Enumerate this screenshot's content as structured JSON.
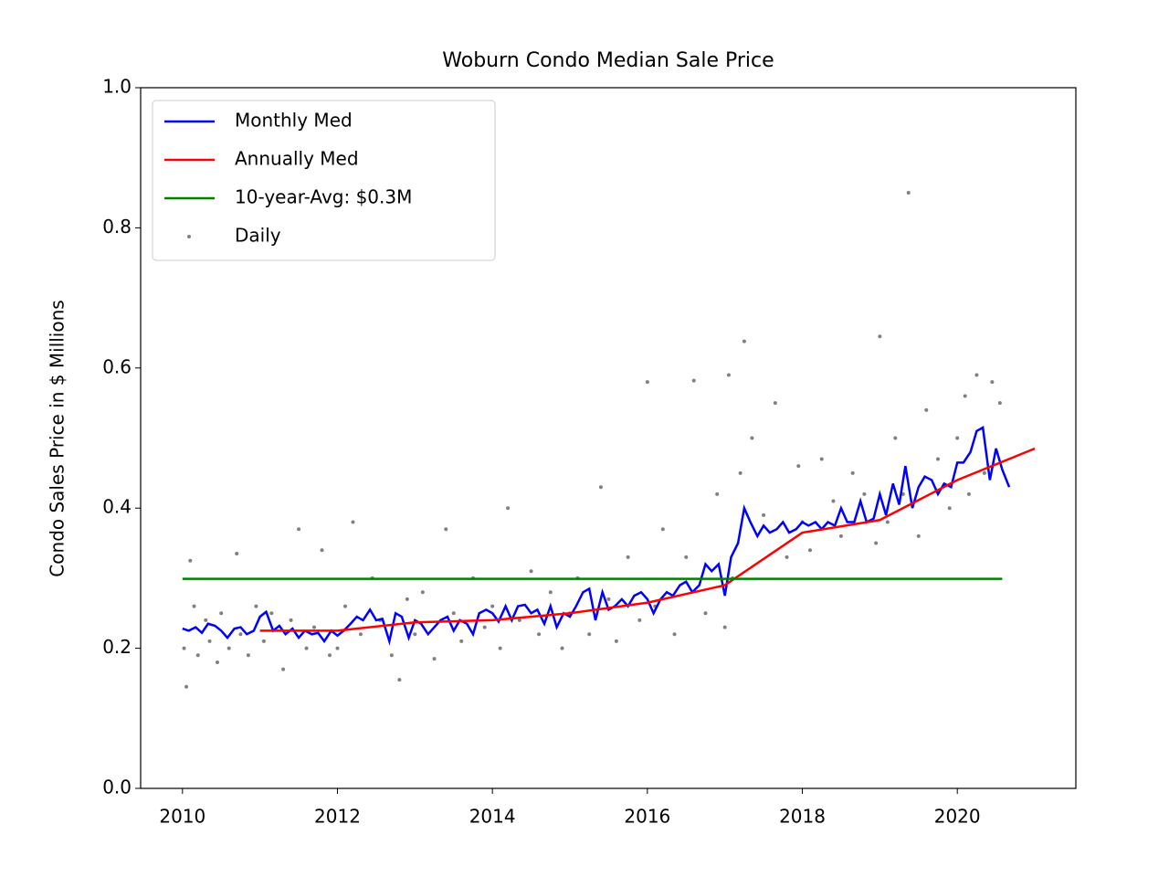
{
  "chart_data": {
    "type": "line",
    "title": "Woburn Condo Median Sale Price",
    "y_label": "Condo Sales Price in $ Millions",
    "xlim": [
      2009.46,
      2021.53
    ],
    "ylim": [
      0,
      1
    ],
    "xticks": [
      2010,
      2012,
      2014,
      2016,
      2018,
      2020
    ],
    "yticks": [
      {
        "value": 0,
        "label": "0.0"
      },
      0.2,
      0.4,
      0.6,
      0.8,
      {
        "value": 1,
        "label": "1.0"
      }
    ],
    "legend": "upper left",
    "series": [
      {
        "name": "Monthly Med",
        "color": "#0000ff",
        "kind": "line",
        "x": [
          2010.0,
          2010.08,
          2010.17,
          2010.25,
          2010.33,
          2010.42,
          2010.5,
          2010.58,
          2010.67,
          2010.75,
          2010.83,
          2010.92,
          2011.0,
          2011.08,
          2011.17,
          2011.25,
          2011.33,
          2011.42,
          2011.5,
          2011.58,
          2011.67,
          2011.75,
          2011.83,
          2011.92,
          2012.0,
          2012.08,
          2012.17,
          2012.25,
          2012.33,
          2012.42,
          2012.5,
          2012.58,
          2012.67,
          2012.75,
          2012.83,
          2012.92,
          2013.0,
          2013.08,
          2013.17,
          2013.25,
          2013.33,
          2013.42,
          2013.5,
          2013.58,
          2013.67,
          2013.75,
          2013.83,
          2013.92,
          2014.0,
          2014.08,
          2014.17,
          2014.25,
          2014.33,
          2014.42,
          2014.5,
          2014.58,
          2014.67,
          2014.75,
          2014.83,
          2014.92,
          2015.0,
          2015.08,
          2015.17,
          2015.25,
          2015.33,
          2015.42,
          2015.5,
          2015.58,
          2015.67,
          2015.75,
          2015.83,
          2015.92,
          2016.0,
          2016.08,
          2016.17,
          2016.25,
          2016.33,
          2016.42,
          2016.5,
          2016.58,
          2016.67,
          2016.75,
          2016.83,
          2016.92,
          2017.0,
          2017.08,
          2017.17,
          2017.25,
          2017.33,
          2017.42,
          2017.5,
          2017.58,
          2017.67,
          2017.75,
          2017.83,
          2017.92,
          2018.0,
          2018.08,
          2018.17,
          2018.25,
          2018.33,
          2018.42,
          2018.5,
          2018.58,
          2018.67,
          2018.75,
          2018.83,
          2018.92,
          2019.0,
          2019.08,
          2019.17,
          2019.25,
          2019.33,
          2019.42,
          2019.5,
          2019.58,
          2019.67,
          2019.75,
          2019.83,
          2019.92,
          2020.0,
          2020.08,
          2020.17,
          2020.25,
          2020.33,
          2020.42,
          2020.5,
          2020.58,
          2020.67
        ],
        "values": [
          0.228,
          0.225,
          0.23,
          0.222,
          0.235,
          0.232,
          0.225,
          0.215,
          0.228,
          0.23,
          0.22,
          0.225,
          0.245,
          0.252,
          0.225,
          0.232,
          0.22,
          0.228,
          0.215,
          0.225,
          0.22,
          0.222,
          0.21,
          0.225,
          0.218,
          0.225,
          0.235,
          0.245,
          0.24,
          0.255,
          0.24,
          0.242,
          0.21,
          0.25,
          0.245,
          0.215,
          0.24,
          0.235,
          0.22,
          0.23,
          0.24,
          0.245,
          0.225,
          0.24,
          0.235,
          0.22,
          0.25,
          0.255,
          0.25,
          0.238,
          0.26,
          0.24,
          0.26,
          0.262,
          0.25,
          0.255,
          0.235,
          0.26,
          0.23,
          0.25,
          0.245,
          0.26,
          0.28,
          0.285,
          0.24,
          0.28,
          0.255,
          0.26,
          0.27,
          0.26,
          0.275,
          0.28,
          0.27,
          0.25,
          0.27,
          0.28,
          0.275,
          0.29,
          0.295,
          0.28,
          0.29,
          0.32,
          0.31,
          0.32,
          0.275,
          0.33,
          0.35,
          0.4,
          0.38,
          0.36,
          0.375,
          0.365,
          0.37,
          0.38,
          0.365,
          0.37,
          0.38,
          0.375,
          0.38,
          0.37,
          0.38,
          0.375,
          0.4,
          0.38,
          0.38,
          0.41,
          0.38,
          0.385,
          0.42,
          0.39,
          0.435,
          0.405,
          0.46,
          0.4,
          0.43,
          0.445,
          0.44,
          0.42,
          0.435,
          0.43,
          0.465,
          0.465,
          0.48,
          0.51,
          0.515,
          0.44,
          0.485,
          0.455,
          0.43
        ]
      },
      {
        "name": "Annually Med",
        "color": "#ff0000",
        "kind": "line",
        "x": [
          2011,
          2012,
          2013,
          2014,
          2015,
          2016,
          2017,
          2018,
          2019,
          2020,
          2021
        ],
        "values": [
          0.225,
          0.225,
          0.237,
          0.24,
          0.25,
          0.265,
          0.29,
          0.365,
          0.383,
          0.44,
          0.485
        ]
      },
      {
        "name": "10-year-Avg: $0.3M",
        "color": "#008000",
        "kind": "line",
        "x": [
          2010,
          2020.58
        ],
        "values": [
          0.299,
          0.299
        ]
      },
      {
        "name": "Daily",
        "color": "#808080",
        "kind": "scatter",
        "x": [
          2010.02,
          2010.05,
          2010.1,
          2010.15,
          2010.2,
          2010.3,
          2010.35,
          2010.45,
          2010.5,
          2010.6,
          2010.7,
          2010.75,
          2010.85,
          2010.95,
          2011.05,
          2011.15,
          2011.3,
          2011.4,
          2011.5,
          2011.6,
          2011.7,
          2011.8,
          2011.9,
          2012.0,
          2012.1,
          2012.2,
          2012.3,
          2012.45,
          2012.55,
          2012.7,
          2012.8,
          2012.9,
          2013.0,
          2013.1,
          2013.25,
          2013.4,
          2013.5,
          2013.6,
          2013.75,
          2013.9,
          2014.0,
          2014.1,
          2014.2,
          2014.35,
          2014.5,
          2014.6,
          2014.75,
          2014.9,
          2015.0,
          2015.1,
          2015.25,
          2015.4,
          2015.5,
          2015.6,
          2015.75,
          2015.9,
          2016.0,
          2016.1,
          2016.2,
          2016.35,
          2016.5,
          2016.6,
          2016.75,
          2016.9,
          2017.0,
          2017.05,
          2017.1,
          2017.2,
          2017.25,
          2017.35,
          2017.5,
          2017.65,
          2017.8,
          2017.95,
          2018.0,
          2018.1,
          2018.25,
          2018.4,
          2018.5,
          2018.65,
          2018.8,
          2018.95,
          2019.0,
          2019.1,
          2019.2,
          2019.3,
          2019.37,
          2019.5,
          2019.6,
          2019.75,
          2019.9,
          2020.0,
          2020.1,
          2020.15,
          2020.25,
          2020.35,
          2020.45,
          2020.55
        ],
        "values": [
          0.2,
          0.145,
          0.325,
          0.26,
          0.19,
          0.24,
          0.21,
          0.18,
          0.25,
          0.2,
          0.335,
          0.22,
          0.19,
          0.26,
          0.21,
          0.25,
          0.17,
          0.24,
          0.37,
          0.2,
          0.23,
          0.34,
          0.19,
          0.2,
          0.26,
          0.38,
          0.22,
          0.3,
          0.24,
          0.19,
          0.155,
          0.27,
          0.22,
          0.28,
          0.185,
          0.37,
          0.25,
          0.21,
          0.3,
          0.23,
          0.26,
          0.2,
          0.4,
          0.24,
          0.31,
          0.22,
          0.28,
          0.2,
          0.25,
          0.3,
          0.22,
          0.43,
          0.27,
          0.21,
          0.33,
          0.24,
          0.58,
          0.26,
          0.37,
          0.22,
          0.33,
          0.582,
          0.25,
          0.42,
          0.23,
          0.59,
          0.3,
          0.45,
          0.638,
          0.5,
          0.39,
          0.55,
          0.33,
          0.46,
          0.38,
          0.34,
          0.47,
          0.41,
          0.36,
          0.45,
          0.42,
          0.35,
          0.645,
          0.38,
          0.5,
          0.42,
          0.85,
          0.36,
          0.54,
          0.47,
          0.4,
          0.5,
          0.56,
          0.42,
          0.59,
          0.45,
          0.58,
          0.55
        ]
      }
    ]
  }
}
